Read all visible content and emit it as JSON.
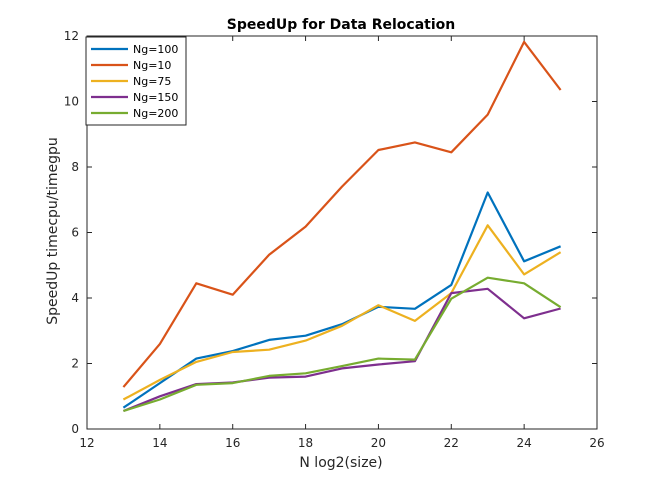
{
  "chart_data": {
    "type": "line",
    "title": "SpeedUp for Data Relocation",
    "xlabel": "N log2(size)",
    "ylabel": "SpeedUp timecpu/timegpu",
    "xlim": [
      12,
      26
    ],
    "ylim": [
      0,
      12
    ],
    "xticks": [
      12,
      14,
      16,
      18,
      20,
      22,
      24,
      26
    ],
    "yticks": [
      0,
      2,
      4,
      6,
      8,
      10,
      12
    ],
    "grid": false,
    "legend_position": "top-left",
    "x": [
      13,
      14,
      15,
      16,
      17,
      18,
      19,
      20,
      21,
      22,
      23,
      24,
      25
    ],
    "series": [
      {
        "name": "Ng=100",
        "color": "#0072BD",
        "values": [
          0.65,
          1.4,
          2.15,
          2.38,
          2.72,
          2.85,
          3.2,
          3.73,
          3.67,
          4.4,
          7.22,
          5.12,
          5.58
        ]
      },
      {
        "name": "Ng=10",
        "color": "#D95319",
        "values": [
          1.28,
          2.6,
          4.45,
          4.1,
          5.32,
          6.18,
          7.4,
          8.52,
          8.75,
          8.45,
          9.6,
          11.82,
          10.35
        ]
      },
      {
        "name": "Ng=75",
        "color": "#EDB120",
        "values": [
          0.9,
          1.5,
          2.05,
          2.35,
          2.42,
          2.7,
          3.15,
          3.78,
          3.3,
          4.15,
          6.22,
          4.72,
          5.4
        ]
      },
      {
        "name": "Ng=150",
        "color": "#7E2F8E",
        "values": [
          0.55,
          1.0,
          1.37,
          1.42,
          1.57,
          1.6,
          1.85,
          1.97,
          2.07,
          4.15,
          4.28,
          3.38,
          3.68
        ]
      },
      {
        "name": "Ng=200",
        "color": "#77AC30",
        "values": [
          0.55,
          0.9,
          1.35,
          1.4,
          1.62,
          1.7,
          1.92,
          2.15,
          2.12,
          3.98,
          4.62,
          4.45,
          3.72
        ]
      }
    ]
  }
}
